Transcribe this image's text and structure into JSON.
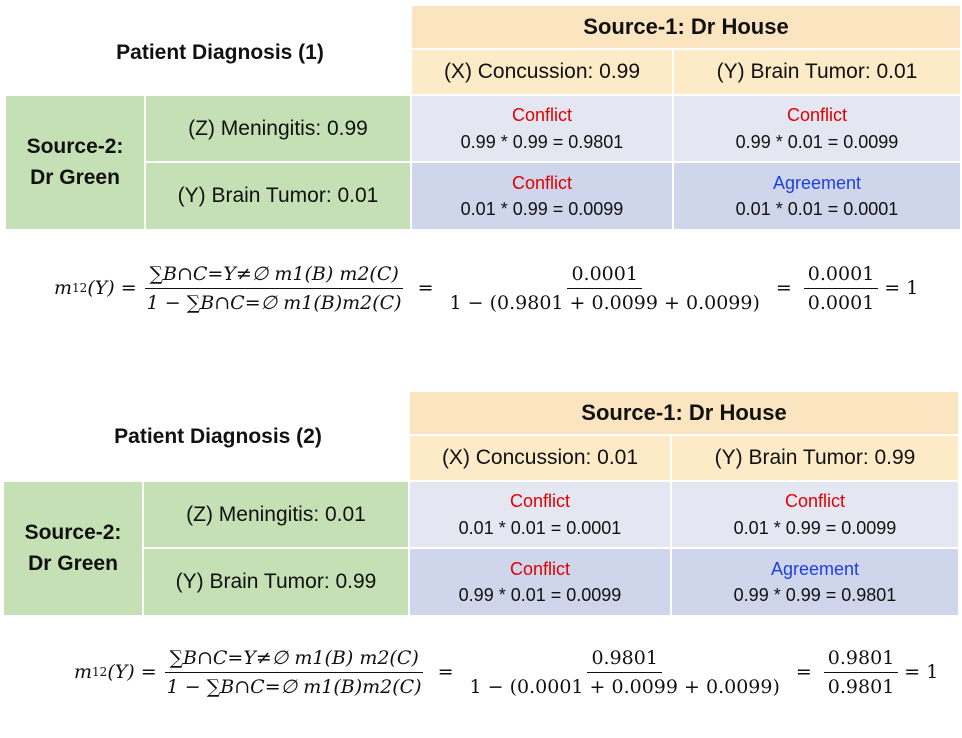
{
  "panels": [
    {
      "title": "Patient Diagnosis (1)",
      "source1": "Source-1: Dr House",
      "source1_hyps": [
        "(X) Concussion: 0.99",
        "(Y) Brain Tumor: 0.01"
      ],
      "source2": [
        "Source-2:",
        "Dr Green"
      ],
      "source2_hyps": [
        "(Z) Meningitis: 0.99",
        "(Y) Brain Tumor: 0.01"
      ],
      "cells": [
        [
          {
            "label": "Conflict",
            "calc": "0.99 * 0.99 = 0.9801"
          },
          {
            "label": "Conflict",
            "calc": "0.99 * 0.01 = 0.0099"
          }
        ],
        [
          {
            "label": "Conflict",
            "calc": "0.01 * 0.99 = 0.0099"
          },
          {
            "label": "Agreement",
            "calc": "0.01 * 0.01 = 0.0001"
          }
        ]
      ],
      "formula": {
        "lhs": "m",
        "lhs_sub": "12",
        "lhs_arg": "(Y) =",
        "num": "∑B∩C=Y≠∅ m1(B) m2(C)",
        "den": "1 − ∑B∩C=∅ m1(B)m2(C)",
        "eq2_num": "0.0001",
        "eq2_den": "1 − (0.9801 + 0.0099 + 0.0099)",
        "eq3_num": "0.0001",
        "eq3_den": "0.0001",
        "result": "= 1"
      }
    },
    {
      "title": "Patient Diagnosis (2)",
      "source1": "Source-1: Dr House",
      "source1_hyps": [
        "(X) Concussion: 0.01",
        "(Y) Brain Tumor: 0.99"
      ],
      "source2": [
        "Source-2:",
        "Dr Green"
      ],
      "source2_hyps": [
        "(Z) Meningitis: 0.01",
        "(Y) Brain Tumor: 0.99"
      ],
      "cells": [
        [
          {
            "label": "Conflict",
            "calc": "0.01 * 0.01 = 0.0001"
          },
          {
            "label": "Conflict",
            "calc": "0.01 * 0.99 = 0.0099"
          }
        ],
        [
          {
            "label": "Conflict",
            "calc": "0.99 * 0.01 = 0.0099"
          },
          {
            "label": "Agreement",
            "calc": "0.99 * 0.99 = 0.9801"
          }
        ]
      ],
      "formula": {
        "lhs": "m",
        "lhs_sub": "12",
        "lhs_arg": "(Y) =",
        "num": "∑B∩C=Y≠∅ m1(B) m2(C)",
        "den": "1 − ∑B∩C=∅ m1(B)m2(C)",
        "eq2_num": "0.9801",
        "eq2_den": "1 − (0.0001 + 0.0099 + 0.0099)",
        "eq3_num": "0.9801",
        "eq3_den": "0.9801",
        "result": "= 1"
      }
    }
  ],
  "colors": {
    "source1_header": "#fbe5c0",
    "source2_header": "#c5e0b4",
    "cell_light": "#e4e7f2",
    "cell_dark": "#cfd5ea",
    "conflict": "#e00000",
    "agreement": "#1f3fe0"
  }
}
